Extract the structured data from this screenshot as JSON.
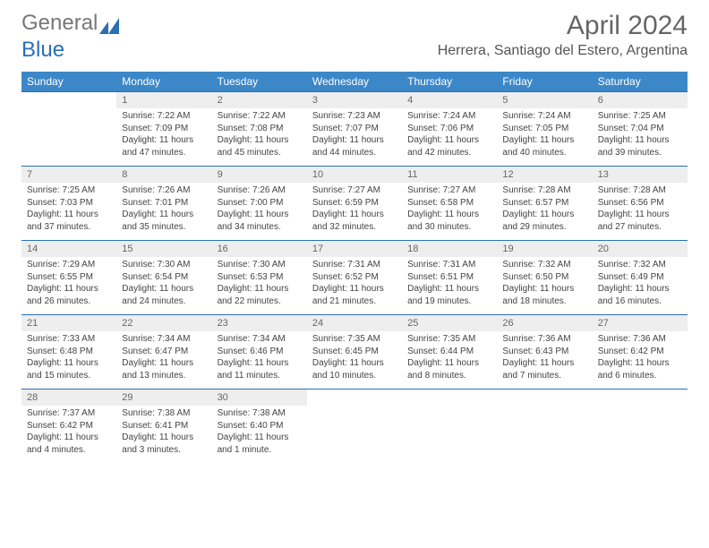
{
  "brand": {
    "part1": "General",
    "part2": "Blue"
  },
  "title": "April 2024",
  "location": "Herrera, Santiago del Estero, Argentina",
  "colors": {
    "header_bg": "#3c87c7",
    "rule": "#2a6fb5",
    "daynum_bg": "#eeeeee"
  },
  "day_headers": [
    "Sunday",
    "Monday",
    "Tuesday",
    "Wednesday",
    "Thursday",
    "Friday",
    "Saturday"
  ],
  "weeks": [
    {
      "nums": [
        "",
        "1",
        "2",
        "3",
        "4",
        "5",
        "6"
      ],
      "details": [
        "",
        "Sunrise: 7:22 AM\nSunset: 7:09 PM\nDaylight: 11 hours and 47 minutes.",
        "Sunrise: 7:22 AM\nSunset: 7:08 PM\nDaylight: 11 hours and 45 minutes.",
        "Sunrise: 7:23 AM\nSunset: 7:07 PM\nDaylight: 11 hours and 44 minutes.",
        "Sunrise: 7:24 AM\nSunset: 7:06 PM\nDaylight: 11 hours and 42 minutes.",
        "Sunrise: 7:24 AM\nSunset: 7:05 PM\nDaylight: 11 hours and 40 minutes.",
        "Sunrise: 7:25 AM\nSunset: 7:04 PM\nDaylight: 11 hours and 39 minutes."
      ]
    },
    {
      "nums": [
        "7",
        "8",
        "9",
        "10",
        "11",
        "12",
        "13"
      ],
      "details": [
        "Sunrise: 7:25 AM\nSunset: 7:03 PM\nDaylight: 11 hours and 37 minutes.",
        "Sunrise: 7:26 AM\nSunset: 7:01 PM\nDaylight: 11 hours and 35 minutes.",
        "Sunrise: 7:26 AM\nSunset: 7:00 PM\nDaylight: 11 hours and 34 minutes.",
        "Sunrise: 7:27 AM\nSunset: 6:59 PM\nDaylight: 11 hours and 32 minutes.",
        "Sunrise: 7:27 AM\nSunset: 6:58 PM\nDaylight: 11 hours and 30 minutes.",
        "Sunrise: 7:28 AM\nSunset: 6:57 PM\nDaylight: 11 hours and 29 minutes.",
        "Sunrise: 7:28 AM\nSunset: 6:56 PM\nDaylight: 11 hours and 27 minutes."
      ]
    },
    {
      "nums": [
        "14",
        "15",
        "16",
        "17",
        "18",
        "19",
        "20"
      ],
      "details": [
        "Sunrise: 7:29 AM\nSunset: 6:55 PM\nDaylight: 11 hours and 26 minutes.",
        "Sunrise: 7:30 AM\nSunset: 6:54 PM\nDaylight: 11 hours and 24 minutes.",
        "Sunrise: 7:30 AM\nSunset: 6:53 PM\nDaylight: 11 hours and 22 minutes.",
        "Sunrise: 7:31 AM\nSunset: 6:52 PM\nDaylight: 11 hours and 21 minutes.",
        "Sunrise: 7:31 AM\nSunset: 6:51 PM\nDaylight: 11 hours and 19 minutes.",
        "Sunrise: 7:32 AM\nSunset: 6:50 PM\nDaylight: 11 hours and 18 minutes.",
        "Sunrise: 7:32 AM\nSunset: 6:49 PM\nDaylight: 11 hours and 16 minutes."
      ]
    },
    {
      "nums": [
        "21",
        "22",
        "23",
        "24",
        "25",
        "26",
        "27"
      ],
      "details": [
        "Sunrise: 7:33 AM\nSunset: 6:48 PM\nDaylight: 11 hours and 15 minutes.",
        "Sunrise: 7:34 AM\nSunset: 6:47 PM\nDaylight: 11 hours and 13 minutes.",
        "Sunrise: 7:34 AM\nSunset: 6:46 PM\nDaylight: 11 hours and 11 minutes.",
        "Sunrise: 7:35 AM\nSunset: 6:45 PM\nDaylight: 11 hours and 10 minutes.",
        "Sunrise: 7:35 AM\nSunset: 6:44 PM\nDaylight: 11 hours and 8 minutes.",
        "Sunrise: 7:36 AM\nSunset: 6:43 PM\nDaylight: 11 hours and 7 minutes.",
        "Sunrise: 7:36 AM\nSunset: 6:42 PM\nDaylight: 11 hours and 6 minutes."
      ]
    },
    {
      "nums": [
        "28",
        "29",
        "30",
        "",
        "",
        "",
        ""
      ],
      "details": [
        "Sunrise: 7:37 AM\nSunset: 6:42 PM\nDaylight: 11 hours and 4 minutes.",
        "Sunrise: 7:38 AM\nSunset: 6:41 PM\nDaylight: 11 hours and 3 minutes.",
        "Sunrise: 7:38 AM\nSunset: 6:40 PM\nDaylight: 11 hours and 1 minute.",
        "",
        "",
        "",
        ""
      ]
    }
  ]
}
